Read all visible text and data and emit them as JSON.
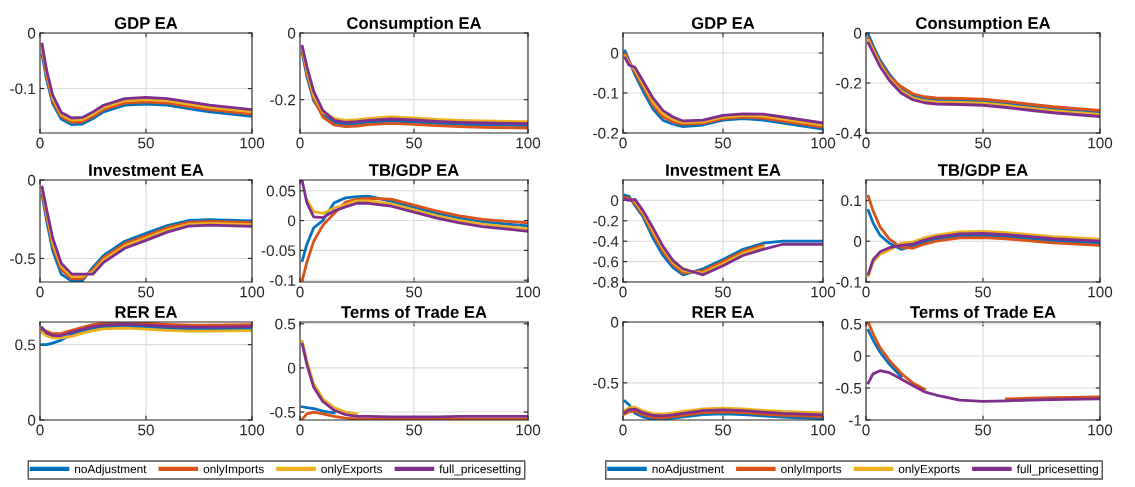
{
  "chart_data": [
    {
      "type": "line",
      "title": "GDP EA",
      "x": [
        1,
        3,
        6,
        10,
        15,
        20,
        25,
        30,
        40,
        50,
        60,
        70,
        80,
        100
      ],
      "xlim": [
        0,
        100
      ],
      "xticks": [
        0,
        50,
        100
      ],
      "ylim": [
        -0.18,
        0
      ],
      "yticks": [
        -0.1,
        0
      ],
      "grid": true,
      "series": [
        {
          "color": "#0072bd",
          "values": [
            -0.04,
            -0.082,
            -0.127,
            -0.155,
            -0.165,
            -0.164,
            -0.154,
            -0.142,
            -0.13,
            -0.128,
            -0.13,
            -0.136,
            -0.142,
            -0.15
          ]
        },
        {
          "color": "#d95319",
          "values": [
            -0.03,
            -0.075,
            -0.122,
            -0.151,
            -0.161,
            -0.16,
            -0.15,
            -0.138,
            -0.126,
            -0.124,
            -0.126,
            -0.132,
            -0.138,
            -0.146
          ]
        },
        {
          "color": "#edb120",
          "values": [
            -0.025,
            -0.07,
            -0.117,
            -0.147,
            -0.157,
            -0.156,
            -0.146,
            -0.134,
            -0.122,
            -0.12,
            -0.122,
            -0.128,
            -0.134,
            -0.142
          ]
        },
        {
          "color": "#7e2f8e",
          "values": [
            -0.02,
            -0.065,
            -0.112,
            -0.143,
            -0.153,
            -0.152,
            -0.142,
            -0.13,
            -0.118,
            -0.116,
            -0.118,
            -0.124,
            -0.13,
            -0.138
          ]
        }
      ]
    },
    {
      "type": "line",
      "title": "Consumption EA",
      "x": [
        1,
        3,
        6,
        10,
        15,
        20,
        25,
        30,
        40,
        50,
        60,
        70,
        80,
        100
      ],
      "xlim": [
        0,
        100
      ],
      "xticks": [
        0,
        50,
        100
      ],
      "ylim": [
        -0.3,
        0
      ],
      "yticks": [
        -0.2,
        0
      ],
      "grid": true,
      "series": [
        {
          "color": "#0072bd",
          "values": [
            -0.06,
            -0.13,
            -0.203,
            -0.245,
            -0.269,
            -0.274,
            -0.272,
            -0.268,
            -0.264,
            -0.267,
            -0.271,
            -0.274,
            -0.276,
            -0.278
          ]
        },
        {
          "color": "#d95319",
          "values": [
            -0.052,
            -0.12,
            -0.196,
            -0.252,
            -0.276,
            -0.281,
            -0.279,
            -0.275,
            -0.271,
            -0.274,
            -0.278,
            -0.281,
            -0.283,
            -0.285
          ]
        },
        {
          "color": "#edb120",
          "values": [
            -0.046,
            -0.11,
            -0.188,
            -0.238,
            -0.256,
            -0.262,
            -0.26,
            -0.256,
            -0.252,
            -0.255,
            -0.259,
            -0.262,
            -0.264,
            -0.266
          ]
        },
        {
          "color": "#7e2f8e",
          "values": [
            -0.04,
            -0.1,
            -0.175,
            -0.232,
            -0.262,
            -0.268,
            -0.266,
            -0.262,
            -0.258,
            -0.261,
            -0.265,
            -0.268,
            -0.27,
            -0.272
          ]
        }
      ]
    },
    {
      "type": "line",
      "title": "Investment EA",
      "x": [
        1,
        3,
        6,
        10,
        15,
        20,
        25,
        30,
        40,
        50,
        60,
        70,
        80,
        100
      ],
      "xlim": [
        0,
        100
      ],
      "xticks": [
        0,
        50,
        100
      ],
      "ylim": [
        -0.65,
        0
      ],
      "yticks": [
        -0.5,
        0
      ],
      "grid": true,
      "series": [
        {
          "color": "#0072bd",
          "values": [
            -0.1,
            -0.25,
            -0.45,
            -0.6,
            -0.645,
            -0.642,
            -0.555,
            -0.48,
            -0.39,
            -0.34,
            -0.29,
            -0.258,
            -0.252,
            -0.26
          ]
        },
        {
          "color": "#d95319",
          "values": [
            -0.075,
            -0.22,
            -0.42,
            -0.57,
            -0.63,
            -0.628,
            -0.57,
            -0.495,
            -0.405,
            -0.355,
            -0.304,
            -0.27,
            -0.264,
            -0.272
          ]
        },
        {
          "color": "#edb120",
          "values": [
            -0.06,
            -0.2,
            -0.4,
            -0.55,
            -0.615,
            -0.614,
            -0.585,
            -0.51,
            -0.42,
            -0.37,
            -0.318,
            -0.282,
            -0.276,
            -0.284
          ]
        },
        {
          "color": "#7e2f8e",
          "values": [
            -0.045,
            -0.18,
            -0.37,
            -0.53,
            -0.6,
            -0.6,
            -0.6,
            -0.525,
            -0.435,
            -0.385,
            -0.332,
            -0.294,
            -0.288,
            -0.296
          ]
        }
      ]
    },
    {
      "type": "line",
      "title": "TB/GDP EA",
      "x": [
        1,
        3,
        6,
        10,
        15,
        20,
        25,
        30,
        40,
        50,
        60,
        70,
        80,
        100
      ],
      "xlim": [
        0,
        100
      ],
      "xticks": [
        0,
        50,
        100
      ],
      "ylim": [
        -0.103,
        0.068
      ],
      "yticks": [
        -0.1,
        -0.05,
        0,
        0.05
      ],
      "grid": true,
      "series": [
        {
          "color": "#0072bd",
          "values": [
            -0.067,
            -0.04,
            -0.012,
            0.0,
            0.03,
            0.038,
            0.04,
            0.041,
            0.032,
            0.022,
            0.012,
            0.004,
            -0.002,
            -0.009
          ]
        },
        {
          "color": "#d95319",
          "values": [
            -0.1,
            -0.07,
            -0.035,
            -0.008,
            0.012,
            0.031,
            0.036,
            0.037,
            0.036,
            0.026,
            0.016,
            0.008,
            0.002,
            -0.004
          ]
        },
        {
          "color": "#edb120",
          "values": [
            null,
            0.035,
            0.015,
            0.012,
            0.021,
            0.027,
            0.033,
            0.033,
            0.028,
            0.018,
            0.008,
            0.0,
            -0.006,
            -0.014
          ]
        },
        {
          "color": "#7e2f8e",
          "values": [
            0.066,
            0.03,
            0.006,
            0.005,
            0.016,
            0.023,
            0.029,
            0.029,
            0.024,
            0.014,
            0.004,
            -0.004,
            -0.01,
            -0.018
          ]
        }
      ]
    },
    {
      "type": "line",
      "title": "RER EA",
      "x": [
        1,
        3,
        6,
        10,
        15,
        20,
        25,
        30,
        40,
        50,
        60,
        70,
        80,
        100
      ],
      "xlim": [
        0,
        100
      ],
      "xticks": [
        0,
        50,
        100
      ],
      "ylim": [
        0,
        0.65
      ],
      "yticks": [
        0,
        0.5
      ],
      "grid": true,
      "legend": "bottom",
      "series": [
        {
          "name": "noAdjustment",
          "color": "#0072bd",
          "values": [
            0.5,
            0.5,
            0.51,
            0.53,
            0.568,
            0.589,
            0.606,
            0.617,
            0.622,
            0.616,
            0.608,
            0.603,
            0.603,
            0.606
          ]
        },
        {
          "name": "onlyImports",
          "color": "#d95319",
          "values": [
            0.596,
            0.59,
            0.572,
            0.575,
            0.595,
            0.615,
            0.632,
            0.643,
            0.648,
            0.642,
            0.634,
            0.629,
            0.629,
            0.632
          ]
        },
        {
          "name": "onlyExports",
          "color": "#edb120",
          "values": [
            0.58,
            0.56,
            0.545,
            0.545,
            0.555,
            0.576,
            0.593,
            0.604,
            0.609,
            0.603,
            0.595,
            0.59,
            0.59,
            0.593
          ]
        },
        {
          "name": "full_pricesetting",
          "color": "#7e2f8e",
          "values": [
            0.612,
            0.578,
            0.56,
            0.56,
            0.582,
            0.602,
            0.619,
            0.63,
            0.635,
            0.629,
            0.621,
            0.616,
            0.616,
            0.619
          ]
        }
      ]
    },
    {
      "type": "line",
      "title": "Terms of Trade EA",
      "x": [
        1,
        3,
        6,
        10,
        15,
        20,
        25,
        30,
        40,
        50,
        60,
        70,
        80,
        100
      ],
      "xlim": [
        0,
        100
      ],
      "xticks": [
        0,
        50,
        100
      ],
      "ylim": [
        -0.59,
        0.52
      ],
      "yticks": [
        -0.5,
        0,
        0.5
      ],
      "grid": true,
      "series": [
        {
          "color": "#0072bd",
          "values": [
            -0.44,
            -0.45,
            -0.46,
            -0.49,
            -0.51,
            null,
            null,
            null,
            null,
            null,
            null,
            null,
            null,
            null
          ]
        },
        {
          "color": "#d95319",
          "values": [
            -0.58,
            -0.52,
            -0.5,
            -0.52,
            -0.55,
            -0.57,
            -0.58,
            -0.58,
            -0.58,
            -0.58,
            -0.58,
            -0.58,
            -0.58,
            -0.58
          ]
        },
        {
          "color": "#edb120",
          "values": [
            0.3,
            0.08,
            -0.18,
            -0.35,
            -0.45,
            -0.5,
            -0.52,
            null,
            null,
            null,
            null,
            null,
            null,
            null
          ]
        },
        {
          "color": "#7e2f8e",
          "values": [
            0.27,
            0.04,
            -0.22,
            -0.38,
            -0.48,
            -0.53,
            -0.55,
            -0.55,
            -0.555,
            -0.555,
            -0.555,
            -0.55,
            -0.55,
            -0.55
          ]
        }
      ]
    },
    {
      "type": "line",
      "title": "GDP EA",
      "x": [
        1,
        3,
        6,
        10,
        15,
        20,
        25,
        30,
        40,
        50,
        60,
        70,
        80,
        100
      ],
      "xlim": [
        0,
        100
      ],
      "xticks": [
        0,
        50,
        100
      ],
      "ylim": [
        -0.2,
        0.05
      ],
      "yticks": [
        -0.2,
        -0.1,
        0
      ],
      "grid": true,
      "series": [
        {
          "color": "#0072bd",
          "values": [
            0.005,
            -0.018,
            -0.055,
            -0.095,
            -0.14,
            -0.168,
            -0.178,
            -0.184,
            -0.18,
            -0.168,
            -0.164,
            -0.168,
            -0.175,
            -0.19
          ]
        },
        {
          "color": "#d95319",
          "values": [
            -0.002,
            -0.022,
            -0.048,
            -0.085,
            -0.13,
            -0.16,
            -0.172,
            -0.178,
            -0.176,
            -0.164,
            -0.16,
            -0.163,
            -0.17,
            -0.185
          ]
        },
        {
          "color": "#edb120",
          "values": [
            -0.007,
            -0.026,
            -0.042,
            -0.078,
            -0.122,
            -0.152,
            -0.166,
            -0.174,
            -0.172,
            -0.16,
            -0.156,
            -0.158,
            -0.165,
            -0.18
          ]
        },
        {
          "color": "#7e2f8e",
          "values": [
            -0.012,
            -0.03,
            -0.036,
            -0.07,
            -0.113,
            -0.144,
            -0.16,
            -0.17,
            -0.168,
            -0.156,
            -0.152,
            -0.153,
            -0.16,
            -0.175
          ]
        }
      ]
    },
    {
      "type": "line",
      "title": "Consumption EA",
      "x": [
        1,
        3,
        6,
        10,
        15,
        20,
        25,
        30,
        40,
        50,
        60,
        70,
        80,
        100
      ],
      "xlim": [
        0,
        100
      ],
      "xticks": [
        0,
        50,
        100
      ],
      "ylim": [
        -0.4,
        0
      ],
      "yticks": [
        -0.4,
        -0.2,
        0
      ],
      "grid": true,
      "series": [
        {
          "color": "#0072bd",
          "values": [
            -0.005,
            -0.05,
            -0.108,
            -0.165,
            -0.222,
            -0.251,
            -0.263,
            -0.268,
            -0.27,
            -0.273,
            -0.282,
            -0.293,
            -0.303,
            -0.318
          ]
        },
        {
          "color": "#d95319",
          "values": [
            -0.02,
            -0.06,
            -0.118,
            -0.175,
            -0.214,
            -0.243,
            -0.255,
            -0.26,
            -0.262,
            -0.265,
            -0.274,
            -0.285,
            -0.295,
            -0.31
          ]
        },
        {
          "color": "#edb120",
          "values": [
            -0.03,
            -0.068,
            -0.126,
            -0.183,
            -0.232,
            -0.259,
            -0.271,
            -0.276,
            -0.278,
            -0.281,
            -0.29,
            -0.301,
            -0.311,
            -0.326
          ]
        },
        {
          "color": "#7e2f8e",
          "values": [
            -0.04,
            -0.078,
            -0.134,
            -0.19,
            -0.24,
            -0.267,
            -0.279,
            -0.284,
            -0.286,
            -0.289,
            -0.298,
            -0.309,
            -0.319,
            -0.334
          ]
        }
      ]
    },
    {
      "type": "line",
      "title": "Investment EA",
      "x": [
        1,
        3,
        6,
        10,
        15,
        20,
        25,
        30,
        40,
        50,
        60,
        70,
        80,
        100
      ],
      "xlim": [
        0,
        100
      ],
      "xticks": [
        0,
        50,
        100
      ],
      "ylim": [
        -0.8,
        0.2
      ],
      "yticks": [
        -0.8,
        -0.6,
        -0.4,
        -0.2,
        0
      ],
      "grid": true,
      "series": [
        {
          "color": "#0072bd",
          "values": [
            0.05,
            0.04,
            -0.05,
            -0.16,
            -0.37,
            -0.54,
            -0.66,
            -0.73,
            -0.67,
            -0.58,
            -0.48,
            -0.42,
            -0.4,
            -0.4
          ]
        },
        {
          "color": "#d95319",
          "values": [
            0.03,
            0.02,
            -0.03,
            -0.14,
            -0.33,
            -0.5,
            -0.63,
            -0.71,
            -0.69,
            -0.6,
            -0.5,
            -0.44,
            null,
            null
          ]
        },
        {
          "color": "#edb120",
          "values": [
            null,
            null,
            -0.01,
            -0.12,
            -0.3,
            -0.47,
            -0.61,
            -0.69,
            -0.71,
            -0.62,
            -0.52,
            -0.46,
            null,
            null
          ]
        },
        {
          "color": "#7e2f8e",
          "values": [
            0.01,
            0.0,
            0.01,
            -0.1,
            -0.27,
            -0.45,
            -0.59,
            -0.67,
            -0.73,
            -0.64,
            -0.54,
            -0.48,
            -0.43,
            -0.43
          ]
        }
      ]
    },
    {
      "type": "line",
      "title": "TB/GDP EA",
      "x": [
        1,
        3,
        6,
        10,
        15,
        20,
        25,
        30,
        40,
        50,
        60,
        70,
        80,
        100
      ],
      "xlim": [
        0,
        100
      ],
      "xticks": [
        0,
        50,
        100
      ],
      "ylim": [
        -0.1,
        0.15
      ],
      "yticks": [
        -0.1,
        0,
        0.1
      ],
      "grid": true,
      "series": [
        {
          "color": "#0072bd",
          "values": [
            0.075,
            0.045,
            0.015,
            -0.005,
            -0.02,
            -0.012,
            -0.002,
            0.005,
            0.013,
            0.014,
            0.011,
            0.006,
            0.001,
            -0.005
          ]
        },
        {
          "color": "#d95319",
          "values": [
            0.11,
            0.075,
            0.035,
            0.005,
            -0.015,
            -0.017,
            -0.007,
            0.0,
            0.008,
            0.009,
            0.006,
            0.001,
            -0.004,
            -0.01
          ]
        },
        {
          "color": "#edb120",
          "values": [
            -0.085,
            -0.052,
            -0.032,
            -0.022,
            -0.005,
            -0.002,
            0.008,
            0.015,
            0.023,
            0.024,
            0.021,
            0.016,
            0.011,
            0.005
          ]
        },
        {
          "color": "#7e2f8e",
          "values": [
            -0.08,
            -0.046,
            -0.026,
            -0.016,
            -0.01,
            -0.007,
            0.003,
            0.01,
            0.018,
            0.019,
            0.016,
            0.011,
            0.006,
            0.0
          ]
        }
      ]
    },
    {
      "type": "line",
      "title": "RER EA",
      "x": [
        1,
        3,
        6,
        10,
        15,
        20,
        25,
        30,
        40,
        50,
        60,
        70,
        80,
        100
      ],
      "xlim": [
        0,
        100
      ],
      "xticks": [
        0,
        50,
        100
      ],
      "ylim": [
        -0.805,
        0
      ],
      "yticks": [
        -0.5,
        0
      ],
      "grid": true,
      "legend": "bottom",
      "series": [
        {
          "name": "noAdjustment",
          "color": "#0072bd",
          "values": [
            -0.65,
            -0.68,
            -0.75,
            -0.78,
            -0.8,
            -0.798,
            -0.79,
            -0.78,
            -0.76,
            -0.754,
            -0.76,
            -0.772,
            -0.782,
            -0.795
          ]
        },
        {
          "name": "onlyImports",
          "color": "#d95319",
          "values": [
            -0.755,
            -0.738,
            -0.73,
            -0.761,
            -0.784,
            -0.788,
            -0.778,
            -0.766,
            -0.744,
            -0.738,
            -0.744,
            -0.756,
            -0.766,
            -0.778
          ]
        },
        {
          "name": "onlyExports",
          "color": "#edb120",
          "values": [
            -0.725,
            -0.705,
            -0.7,
            -0.73,
            -0.753,
            -0.757,
            -0.747,
            -0.735,
            -0.713,
            -0.707,
            -0.713,
            -0.725,
            -0.735,
            -0.747
          ]
        },
        {
          "name": "full_pricesetting",
          "color": "#7e2f8e",
          "values": [
            -0.74,
            -0.72,
            -0.715,
            -0.745,
            -0.768,
            -0.772,
            -0.762,
            -0.75,
            -0.728,
            -0.722,
            -0.728,
            -0.74,
            -0.75,
            -0.762
          ]
        }
      ]
    },
    {
      "type": "line",
      "title": "Terms of Trade EA",
      "x": [
        1,
        3,
        6,
        10,
        15,
        20,
        25,
        30,
        40,
        50,
        60,
        70,
        80,
        100
      ],
      "xlim": [
        0,
        100
      ],
      "xticks": [
        0,
        50,
        100
      ],
      "ylim": [
        -1,
        0.53
      ],
      "yticks": [
        -1,
        -0.5,
        0,
        0.5
      ],
      "grid": true,
      "series": [
        {
          "color": "#0072bd",
          "values": [
            0.4,
            0.25,
            0.06,
            -0.13,
            -0.32,
            null,
            null,
            null,
            null,
            null,
            null,
            null,
            null,
            null
          ]
        },
        {
          "color": "#d95319",
          "values": [
            0.52,
            0.35,
            0.13,
            -0.07,
            -0.27,
            -0.42,
            -0.52,
            null,
            null,
            null,
            -0.67,
            -0.66,
            -0.65,
            -0.64
          ]
        },
        {
          "color": "#edb120",
          "values": [
            null,
            null,
            null,
            null,
            null,
            null,
            null,
            null,
            null,
            null,
            null,
            null,
            null,
            null
          ]
        },
        {
          "color": "#7e2f8e",
          "values": [
            -0.42,
            -0.28,
            -0.23,
            -0.26,
            -0.36,
            -0.46,
            -0.56,
            -0.61,
            -0.69,
            -0.71,
            -0.7,
            -0.69,
            -0.68,
            -0.67
          ]
        }
      ]
    }
  ]
}
